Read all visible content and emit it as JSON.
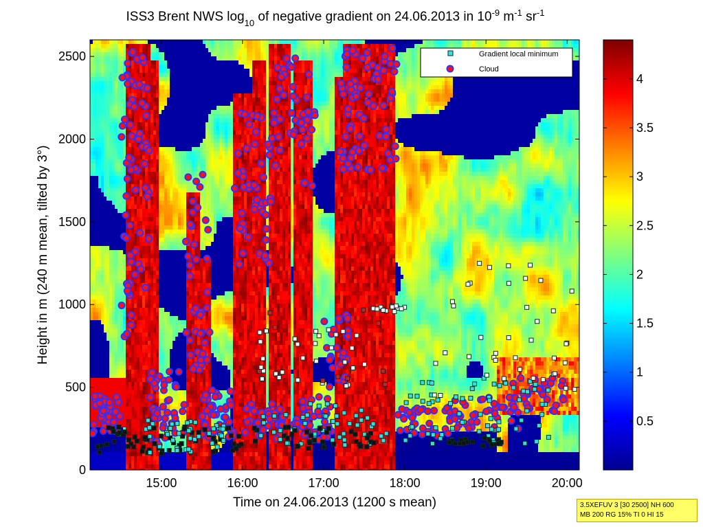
{
  "chart_data": {
    "type": "heatmap",
    "title": {
      "prefix": "ISS3 Brent NWS log",
      "log_base": "10",
      "middle": " of negative gradient on 24.06.2013 in 10",
      "exp1": "-9",
      "unit1": " m",
      "exp2": "-1",
      "unit2": " sr",
      "exp3": "-1"
    },
    "xlabel": "Time on 24.06.2013 (1200 s mean)",
    "ylabel": "Height in m (240 m mean, tilted by 3°)",
    "x_ticks": [
      "15:00",
      "16:00",
      "17:00",
      "18:00",
      "19:00",
      "20:00"
    ],
    "x_range_hours": [
      14.12,
      20.15
    ],
    "y_ticks": [
      "0",
      "500",
      "1000",
      "1500",
      "2000",
      "2500"
    ],
    "y_range": [
      0,
      2600
    ],
    "colorbar": {
      "colormap": "jet",
      "ticks": [
        "0.5",
        "1",
        "1.5",
        "2",
        "2.5",
        "3",
        "3.5",
        "4"
      ],
      "range": [
        0,
        4.4
      ]
    },
    "legend": {
      "placement": "top-right",
      "entries": [
        {
          "label": "Gradient local minimum",
          "marker": "cyan-square"
        },
        {
          "label": "Cloud",
          "marker": "red-dot-blue-ring"
        }
      ]
    },
    "info_box": {
      "line1": "3.5XEFUV 3 [30 2500] NH 600",
      "line2": "MB 200 RG 15% TI 0 HI 15"
    }
  }
}
